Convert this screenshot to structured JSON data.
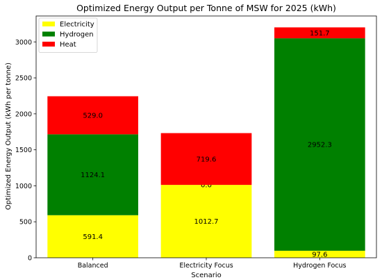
{
  "chart_data": {
    "type": "bar",
    "stacked": true,
    "title": "Optimized Energy Output per Tonne of MSW for 2025 (kWh)",
    "xlabel": "Scenario",
    "ylabel": "Optimized Energy Output (kWh per tonne)",
    "categories": [
      "Balanced",
      "Electricity Focus",
      "Hydrogen Focus"
    ],
    "series": [
      {
        "name": "Electricity",
        "color": "#ffff00",
        "values": [
          591.4,
          1012.7,
          97.6
        ],
        "labels": [
          "591.4",
          "1012.7",
          "97.6"
        ]
      },
      {
        "name": "Hydrogen",
        "color": "#008000",
        "values": [
          1124.1,
          0.0,
          2952.3
        ],
        "labels": [
          "1124.1",
          "0.0",
          "2952.3"
        ]
      },
      {
        "name": "Heat",
        "color": "#ff0000",
        "values": [
          529.0,
          719.6,
          151.7
        ],
        "labels": [
          "529.0",
          "719.6",
          "151.7"
        ]
      }
    ],
    "ylim": [
      0,
      3360
    ],
    "yticks": [
      0,
      500,
      1000,
      1500,
      2000,
      2500,
      3000
    ],
    "ytick_labels": [
      "0",
      "500",
      "1000",
      "1500",
      "2000",
      "2500",
      "3000"
    ],
    "grid": false,
    "legend_position": "top-left"
  }
}
